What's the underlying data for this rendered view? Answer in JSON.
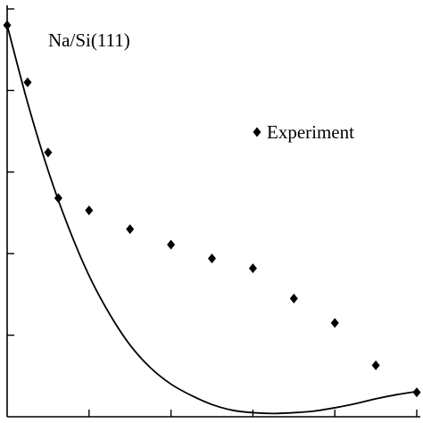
{
  "chart_data": {
    "type": "scatter",
    "title": "",
    "xlabel": "",
    "ylabel": "",
    "annotation": "Na/Si(111)",
    "legend": {
      "placement": "top-right",
      "entries": [
        "Experiment"
      ]
    },
    "grid": false,
    "xlim": [
      0,
      10
    ],
    "ylim": [
      0,
      5
    ],
    "x_ticks": [
      2,
      4,
      6,
      8,
      10
    ],
    "y_ticks": [
      1,
      2,
      3,
      4,
      5
    ],
    "series": [
      {
        "name": "Experiment",
        "kind": "points",
        "x": [
          0.0,
          0.5,
          1.0,
          1.25,
          2.0,
          3.0,
          4.0,
          5.0,
          6.0,
          7.0,
          8.0,
          9.0,
          10.0
        ],
        "y": [
          4.8,
          4.1,
          3.24,
          2.68,
          2.53,
          2.3,
          2.11,
          1.94,
          1.82,
          1.45,
          1.15,
          0.63,
          0.3
        ]
      },
      {
        "name": "",
        "kind": "line",
        "x": [
          0.0,
          0.5,
          1.0,
          1.5,
          2.0,
          2.5,
          3.0,
          3.5,
          4.0,
          4.5,
          5.0,
          5.5,
          6.0,
          6.5,
          7.0,
          7.5,
          8.0,
          8.5,
          9.0,
          9.5,
          10.0
        ],
        "y": [
          4.8,
          3.85,
          3.02,
          2.32,
          1.73,
          1.26,
          0.88,
          0.6,
          0.4,
          0.26,
          0.15,
          0.08,
          0.05,
          0.04,
          0.05,
          0.07,
          0.11,
          0.16,
          0.22,
          0.27,
          0.31
        ]
      }
    ]
  }
}
